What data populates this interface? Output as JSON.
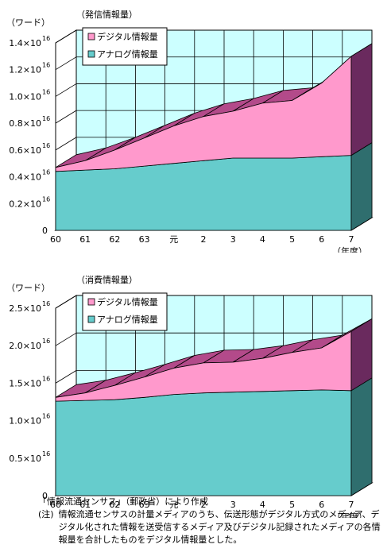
{
  "chart_data": [
    {
      "type": "area",
      "subtitle": "（発信情報量）",
      "ylabel": "（ワード）",
      "xlabel": "（年度）",
      "categories": [
        "60",
        "61",
        "62",
        "63",
        "元",
        "2",
        "3",
        "4",
        "5",
        "6",
        "7"
      ],
      "y_ticks": [
        {
          "value": 0,
          "mantissa": "0",
          "label_is_zero": true
        },
        {
          "value": 0.2,
          "mantissa": "0.2×10"
        },
        {
          "value": 0.4,
          "mantissa": "0.4×10"
        },
        {
          "value": 0.6,
          "mantissa": "0.6×10"
        },
        {
          "value": 0.8,
          "mantissa": "0.8×10"
        },
        {
          "value": 1.0,
          "mantissa": "1.0×10"
        },
        {
          "value": 1.2,
          "mantissa": "1.2×10"
        },
        {
          "value": 1.4,
          "mantissa": "1.4×10"
        }
      ],
      "exponent": "16",
      "ylim": [
        0,
        1.4
      ],
      "unit_note": "values ×10^16 words",
      "stacked": true,
      "legend_position": "top-left",
      "series": [
        {
          "name": "アナログ情報量",
          "color": "#66cccc",
          "values": [
            0.44,
            0.45,
            0.46,
            0.48,
            0.5,
            0.52,
            0.54,
            0.54,
            0.54,
            0.55,
            0.56
          ]
        },
        {
          "name": "デジタル情報量",
          "color": "#ff99cc",
          "values": [
            0.03,
            0.07,
            0.14,
            0.21,
            0.28,
            0.33,
            0.35,
            0.41,
            0.43,
            0.55,
            0.74
          ]
        }
      ]
    },
    {
      "type": "area",
      "subtitle": "（消費情報量）",
      "ylabel": "（ワード）",
      "xlabel": "（年度）",
      "categories": [
        "60",
        "61",
        "62",
        "63",
        "元",
        "2",
        "3",
        "4",
        "5",
        "6",
        "7"
      ],
      "y_ticks": [
        {
          "value": 0,
          "mantissa": "0",
          "label_is_zero": true
        },
        {
          "value": 0.5,
          "mantissa": "0.5×10"
        },
        {
          "value": 1.0,
          "mantissa": "1.0×10"
        },
        {
          "value": 1.5,
          "mantissa": "1.5×10"
        },
        {
          "value": 2.0,
          "mantissa": "2.0×10"
        },
        {
          "value": 2.5,
          "mantissa": "2.5×10"
        }
      ],
      "exponent": "16",
      "ylim": [
        0,
        2.5
      ],
      "unit_note": "values ×10^16 words",
      "stacked": true,
      "legend_position": "top-left",
      "series": [
        {
          "name": "アナログ情報量",
          "color": "#66cccc",
          "values": [
            1.26,
            1.27,
            1.28,
            1.31,
            1.35,
            1.37,
            1.38,
            1.39,
            1.4,
            1.41,
            1.4
          ]
        },
        {
          "name": "デジタル情報量",
          "color": "#ff99cc",
          "values": [
            0.05,
            0.1,
            0.19,
            0.27,
            0.35,
            0.4,
            0.4,
            0.44,
            0.51,
            0.56,
            0.79
          ]
        }
      ]
    }
  ],
  "notes": {
    "source": "「情報流通センサス」（郵政省）により作成",
    "note_label": "(注)",
    "note_text": "情報流通センサスの計量メディアのうち、伝送形態がデジタル方式のメディア、デジタル化された情報を送受信するメディア及びデジタル記録されたメディアの各情報量を合計したものをデジタル情報量とした。"
  },
  "colors": {
    "plot_wall": "#ccffff",
    "grid": "#000000",
    "analog_front": "#66cccc",
    "analog_side": "#2f6e6e",
    "digital_front": "#ff99cc",
    "digital_top": "#b34a8a",
    "digital_side": "#6a2a5e"
  }
}
